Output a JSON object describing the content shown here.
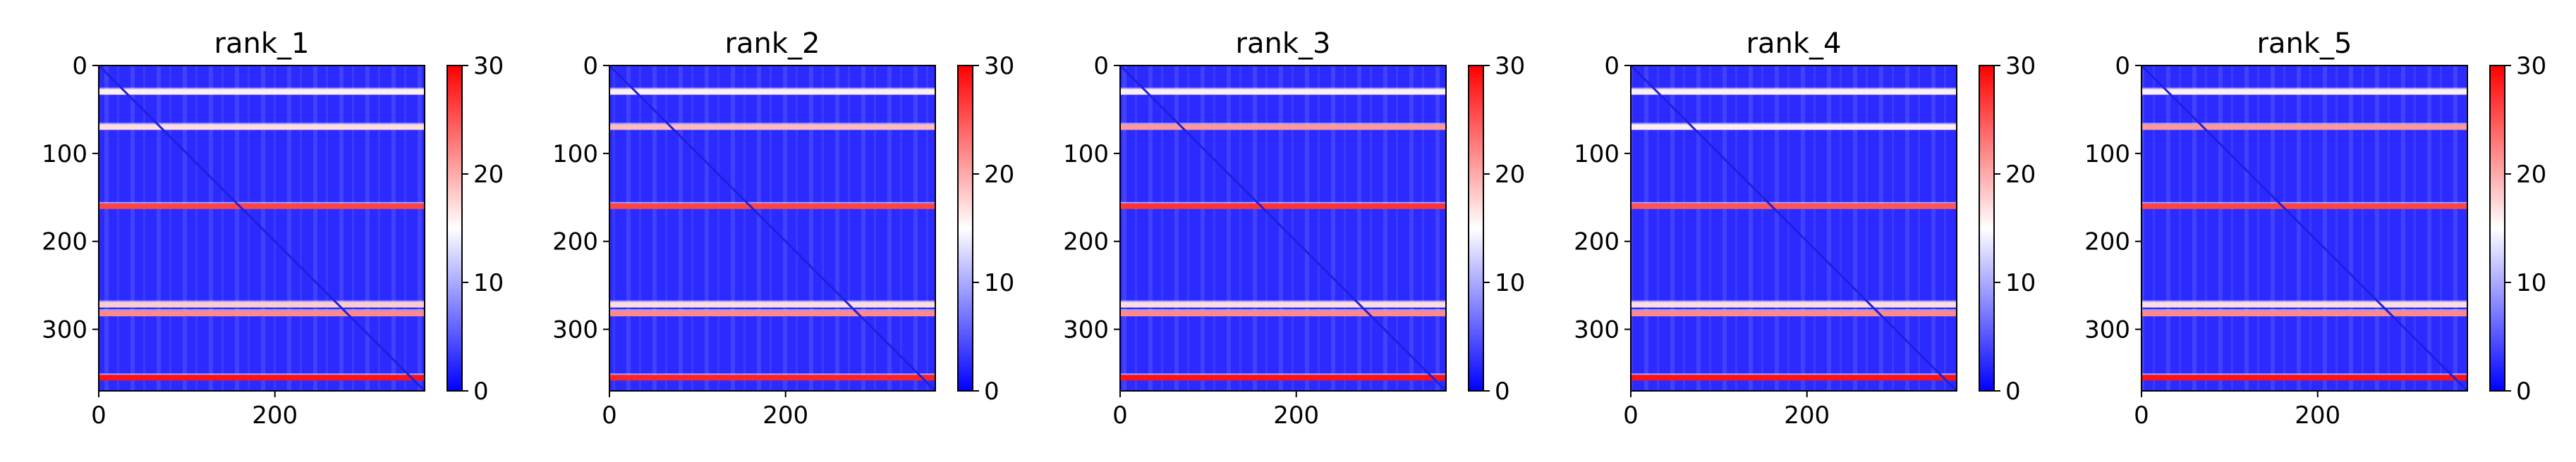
{
  "colors": {
    "low": "#0000ff",
    "mid": "#ffffff",
    "high": "#ff0000",
    "axis": "#000000"
  },
  "chart_data": [
    {
      "type": "heatmap",
      "title": "rank_1",
      "size": 370,
      "xlim": [
        0,
        370
      ],
      "ylim": [
        370,
        0
      ],
      "xticks": [
        0,
        200
      ],
      "yticks": [
        0,
        100,
        200,
        300
      ],
      "colorbar": {
        "min": 0,
        "max": 30,
        "ticks": [
          0,
          10,
          20,
          30
        ],
        "cmap": "bwr"
      },
      "bands": [
        {
          "y": 30,
          "value": 16
        },
        {
          "y": 70,
          "value": 17
        },
        {
          "y": 160,
          "value": 26
        },
        {
          "y": 272,
          "value": 18
        },
        {
          "y": 282,
          "value": 22
        },
        {
          "y": 355,
          "value": 29
        }
      ]
    },
    {
      "type": "heatmap",
      "title": "rank_2",
      "size": 370,
      "xlim": [
        0,
        370
      ],
      "ylim": [
        370,
        0
      ],
      "xticks": [
        0,
        200
      ],
      "yticks": [
        0,
        100,
        200,
        300
      ],
      "colorbar": {
        "min": 0,
        "max": 30,
        "ticks": [
          0,
          10,
          20,
          30
        ],
        "cmap": "bwr"
      },
      "bands": [
        {
          "y": 30,
          "value": 16
        },
        {
          "y": 70,
          "value": 19
        },
        {
          "y": 160,
          "value": 26
        },
        {
          "y": 272,
          "value": 17
        },
        {
          "y": 282,
          "value": 22
        },
        {
          "y": 355,
          "value": 28
        }
      ]
    },
    {
      "type": "heatmap",
      "title": "rank_3",
      "size": 370,
      "xlim": [
        0,
        370
      ],
      "ylim": [
        370,
        0
      ],
      "xticks": [
        0,
        200
      ],
      "yticks": [
        0,
        100,
        200,
        300
      ],
      "colorbar": {
        "min": 0,
        "max": 30,
        "ticks": [
          0,
          10,
          20,
          30
        ],
        "cmap": "bwr"
      },
      "bands": [
        {
          "y": 30,
          "value": 16
        },
        {
          "y": 70,
          "value": 21
        },
        {
          "y": 160,
          "value": 27
        },
        {
          "y": 272,
          "value": 17
        },
        {
          "y": 282,
          "value": 22
        },
        {
          "y": 355,
          "value": 29
        }
      ]
    },
    {
      "type": "heatmap",
      "title": "rank_4",
      "size": 370,
      "xlim": [
        0,
        370
      ],
      "ylim": [
        370,
        0
      ],
      "xticks": [
        0,
        200
      ],
      "yticks": [
        0,
        100,
        200,
        300
      ],
      "colorbar": {
        "min": 0,
        "max": 30,
        "ticks": [
          0,
          10,
          20,
          30
        ],
        "cmap": "bwr"
      },
      "bands": [
        {
          "y": 30,
          "value": 16
        },
        {
          "y": 70,
          "value": 16
        },
        {
          "y": 160,
          "value": 25
        },
        {
          "y": 272,
          "value": 17
        },
        {
          "y": 282,
          "value": 22
        },
        {
          "y": 355,
          "value": 29
        }
      ]
    },
    {
      "type": "heatmap",
      "title": "rank_5",
      "size": 370,
      "xlim": [
        0,
        370
      ],
      "ylim": [
        370,
        0
      ],
      "xticks": [
        0,
        200
      ],
      "yticks": [
        0,
        100,
        200,
        300
      ],
      "colorbar": {
        "min": 0,
        "max": 30,
        "ticks": [
          0,
          10,
          20,
          30
        ],
        "cmap": "bwr"
      },
      "bands": [
        {
          "y": 30,
          "value": 16
        },
        {
          "y": 70,
          "value": 21
        },
        {
          "y": 160,
          "value": 26
        },
        {
          "y": 272,
          "value": 17
        },
        {
          "y": 282,
          "value": 22
        },
        {
          "y": 355,
          "value": 29
        }
      ]
    }
  ]
}
